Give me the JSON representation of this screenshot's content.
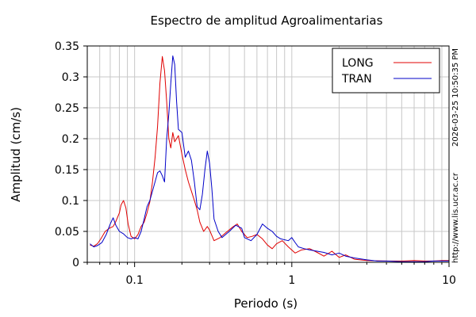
{
  "chart_data": {
    "type": "line",
    "title": "Espectro de amplitud Agroalimentarias",
    "xlabel": "Periodo (s)",
    "ylabel": "Amplitud (cm/s)",
    "x_scale": "log",
    "xlim": [
      0.05,
      10
    ],
    "ylim": [
      0,
      0.35
    ],
    "grid": true,
    "legend_position": "top-right",
    "x_ticks": [
      {
        "value": 0.1,
        "label": "0.1"
      },
      {
        "value": 1,
        "label": "1"
      },
      {
        "value": 10,
        "label": "10"
      }
    ],
    "y_ticks": [
      {
        "value": 0,
        "label": "0"
      },
      {
        "value": 0.05,
        "label": "0.05"
      },
      {
        "value": 0.1,
        "label": "0.1"
      },
      {
        "value": 0.15,
        "label": "0.15"
      },
      {
        "value": 0.2,
        "label": "0.2"
      },
      {
        "value": 0.25,
        "label": "0.25"
      },
      {
        "value": 0.3,
        "label": "0.3"
      },
      {
        "value": 0.35,
        "label": "0.35"
      }
    ],
    "series": [
      {
        "name": "LONG",
        "color": "#e00000",
        "points": [
          [
            0.052,
            0.028
          ],
          [
            0.055,
            0.026
          ],
          [
            0.058,
            0.03
          ],
          [
            0.061,
            0.038
          ],
          [
            0.065,
            0.05
          ],
          [
            0.069,
            0.055
          ],
          [
            0.073,
            0.058
          ],
          [
            0.076,
            0.066
          ],
          [
            0.08,
            0.08
          ],
          [
            0.082,
            0.093
          ],
          [
            0.085,
            0.1
          ],
          [
            0.088,
            0.088
          ],
          [
            0.091,
            0.062
          ],
          [
            0.095,
            0.042
          ],
          [
            0.1,
            0.038
          ],
          [
            0.105,
            0.045
          ],
          [
            0.11,
            0.058
          ],
          [
            0.115,
            0.065
          ],
          [
            0.12,
            0.08
          ],
          [
            0.125,
            0.098
          ],
          [
            0.13,
            0.13
          ],
          [
            0.135,
            0.17
          ],
          [
            0.14,
            0.22
          ],
          [
            0.145,
            0.29
          ],
          [
            0.15,
            0.333
          ],
          [
            0.155,
            0.31
          ],
          [
            0.16,
            0.26
          ],
          [
            0.165,
            0.2
          ],
          [
            0.17,
            0.185
          ],
          [
            0.175,
            0.21
          ],
          [
            0.18,
            0.195
          ],
          [
            0.19,
            0.205
          ],
          [
            0.2,
            0.175
          ],
          [
            0.21,
            0.15
          ],
          [
            0.22,
            0.13
          ],
          [
            0.23,
            0.115
          ],
          [
            0.24,
            0.1
          ],
          [
            0.25,
            0.085
          ],
          [
            0.26,
            0.065
          ],
          [
            0.275,
            0.05
          ],
          [
            0.29,
            0.058
          ],
          [
            0.3,
            0.052
          ],
          [
            0.32,
            0.035
          ],
          [
            0.35,
            0.04
          ],
          [
            0.38,
            0.048
          ],
          [
            0.42,
            0.057
          ],
          [
            0.45,
            0.062
          ],
          [
            0.48,
            0.05
          ],
          [
            0.52,
            0.04
          ],
          [
            0.56,
            0.042
          ],
          [
            0.6,
            0.045
          ],
          [
            0.65,
            0.038
          ],
          [
            0.7,
            0.028
          ],
          [
            0.75,
            0.022
          ],
          [
            0.8,
            0.03
          ],
          [
            0.87,
            0.035
          ],
          [
            0.95,
            0.025
          ],
          [
            1.05,
            0.015
          ],
          [
            1.15,
            0.02
          ],
          [
            1.3,
            0.022
          ],
          [
            1.45,
            0.016
          ],
          [
            1.6,
            0.01
          ],
          [
            1.8,
            0.018
          ],
          [
            2.0,
            0.008
          ],
          [
            2.2,
            0.012
          ],
          [
            2.5,
            0.005
          ],
          [
            3.0,
            0.003
          ],
          [
            4.0,
            0.002
          ],
          [
            5.0,
            0.002
          ],
          [
            6.0,
            0.003
          ],
          [
            7.0,
            0.002
          ],
          [
            8.0,
            0.002
          ],
          [
            9.0,
            0.003
          ],
          [
            10.0,
            0.003
          ]
        ]
      },
      {
        "name": "TRAN",
        "color": "#0000c8",
        "points": [
          [
            0.052,
            0.03
          ],
          [
            0.055,
            0.025
          ],
          [
            0.058,
            0.027
          ],
          [
            0.062,
            0.032
          ],
          [
            0.066,
            0.045
          ],
          [
            0.07,
            0.062
          ],
          [
            0.073,
            0.072
          ],
          [
            0.076,
            0.06
          ],
          [
            0.08,
            0.05
          ],
          [
            0.085,
            0.046
          ],
          [
            0.09,
            0.04
          ],
          [
            0.095,
            0.038
          ],
          [
            0.1,
            0.04
          ],
          [
            0.105,
            0.038
          ],
          [
            0.11,
            0.05
          ],
          [
            0.115,
            0.07
          ],
          [
            0.12,
            0.09
          ],
          [
            0.125,
            0.1
          ],
          [
            0.13,
            0.115
          ],
          [
            0.14,
            0.145
          ],
          [
            0.145,
            0.148
          ],
          [
            0.15,
            0.14
          ],
          [
            0.155,
            0.13
          ],
          [
            0.16,
            0.2
          ],
          [
            0.165,
            0.24
          ],
          [
            0.17,
            0.29
          ],
          [
            0.175,
            0.334
          ],
          [
            0.18,
            0.32
          ],
          [
            0.185,
            0.26
          ],
          [
            0.19,
            0.215
          ],
          [
            0.2,
            0.21
          ],
          [
            0.21,
            0.17
          ],
          [
            0.22,
            0.18
          ],
          [
            0.23,
            0.165
          ],
          [
            0.24,
            0.13
          ],
          [
            0.25,
            0.09
          ],
          [
            0.26,
            0.085
          ],
          [
            0.27,
            0.11
          ],
          [
            0.28,
            0.15
          ],
          [
            0.29,
            0.18
          ],
          [
            0.3,
            0.16
          ],
          [
            0.31,
            0.12
          ],
          [
            0.32,
            0.07
          ],
          [
            0.34,
            0.05
          ],
          [
            0.36,
            0.04
          ],
          [
            0.4,
            0.05
          ],
          [
            0.44,
            0.06
          ],
          [
            0.48,
            0.055
          ],
          [
            0.5,
            0.04
          ],
          [
            0.55,
            0.035
          ],
          [
            0.6,
            0.045
          ],
          [
            0.65,
            0.062
          ],
          [
            0.7,
            0.055
          ],
          [
            0.75,
            0.05
          ],
          [
            0.8,
            0.042
          ],
          [
            0.85,
            0.038
          ],
          [
            0.95,
            0.035
          ],
          [
            1.0,
            0.04
          ],
          [
            1.05,
            0.032
          ],
          [
            1.1,
            0.025
          ],
          [
            1.2,
            0.022
          ],
          [
            1.3,
            0.02
          ],
          [
            1.45,
            0.018
          ],
          [
            1.6,
            0.016
          ],
          [
            1.8,
            0.012
          ],
          [
            2.0,
            0.015
          ],
          [
            2.2,
            0.01
          ],
          [
            2.5,
            0.007
          ],
          [
            3.0,
            0.004
          ],
          [
            3.5,
            0.002
          ],
          [
            4.0,
            0.002
          ],
          [
            5.0,
            0.001
          ],
          [
            6.0,
            0.001
          ],
          [
            7.0,
            0.001
          ],
          [
            8.0,
            0.002
          ],
          [
            9.0,
            0.002
          ],
          [
            10.0,
            0.002
          ]
        ]
      }
    ]
  },
  "watermark_timestamp": "2026-03-25 10:50:35 PM",
  "watermark_url": "http://www.lis.ucr.ac.cr"
}
